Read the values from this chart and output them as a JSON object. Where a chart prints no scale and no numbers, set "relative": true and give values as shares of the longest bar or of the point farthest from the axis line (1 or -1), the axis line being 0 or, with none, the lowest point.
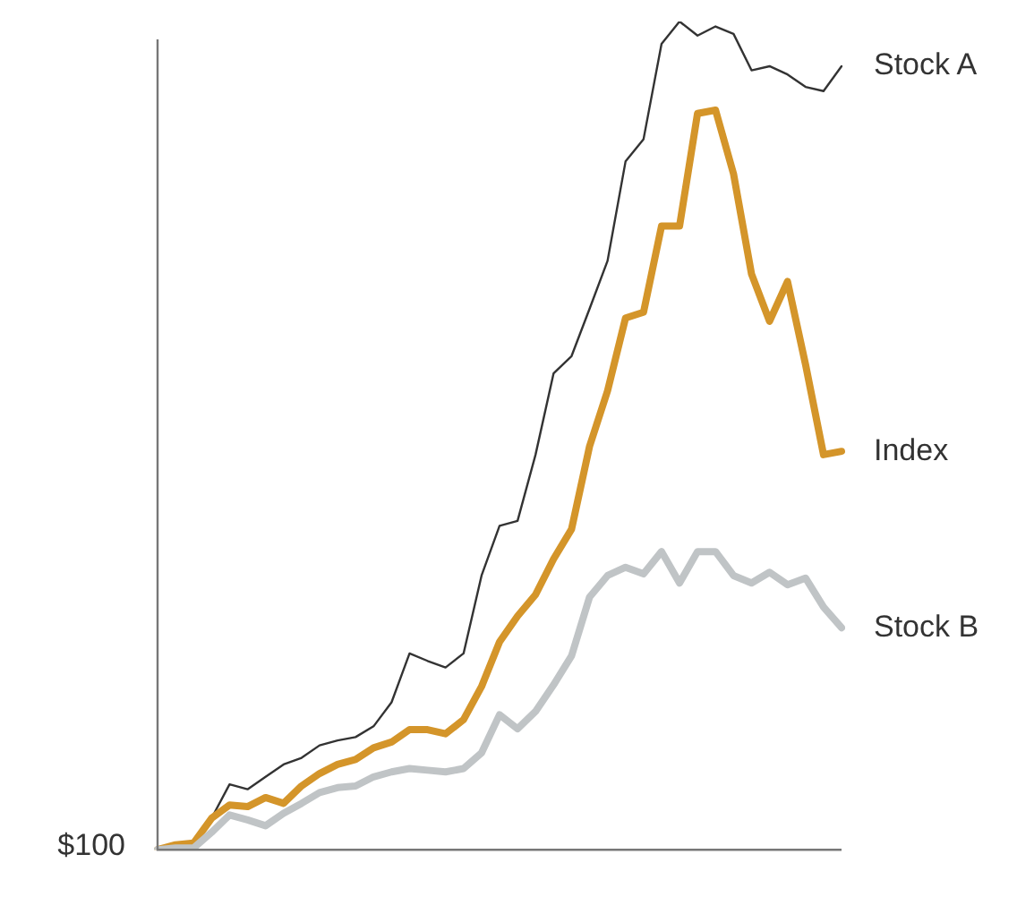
{
  "chart_data": {
    "type": "line",
    "relative": true,
    "legend": false,
    "grid": false,
    "marker": "none",
    "line_style": "solid",
    "categories": [
      null,
      null,
      null,
      null,
      null,
      null,
      null,
      null,
      null,
      null,
      null,
      null,
      null,
      null,
      null,
      null,
      null,
      null,
      null,
      null,
      null,
      null,
      null,
      null,
      null,
      null,
      null,
      null,
      null,
      null,
      null,
      null,
      null,
      null,
      null,
      null,
      null,
      null,
      null
    ],
    "annotations": [
      "$100"
    ],
    "series": [
      {
        "name": "Stock A",
        "color": "#333333",
        "values": [
          0,
          0.006,
          0.008,
          0.038,
          0.079,
          0.073,
          0.088,
          0.103,
          0.111,
          0.126,
          0.132,
          0.136,
          0.149,
          0.178,
          0.237,
          0.228,
          0.22,
          0.237,
          0.331,
          0.391,
          0.397,
          0.477,
          0.575,
          0.596,
          0.653,
          0.711,
          0.831,
          0.858,
          0.973,
          1,
          0.983,
          0.994,
          0.985,
          0.941,
          0.946,
          0.936,
          0.921,
          0.916,
          0.946
        ]
      },
      {
        "name": "Index",
        "color": "#d4952a",
        "values": [
          0,
          0.006,
          0.008,
          0.038,
          0.054,
          0.052,
          0.063,
          0.056,
          0.077,
          0.092,
          0.103,
          0.109,
          0.123,
          0.13,
          0.145,
          0.145,
          0.14,
          0.157,
          0.197,
          0.251,
          0.282,
          0.308,
          0.351,
          0.387,
          0.487,
          0.554,
          0.642,
          0.649,
          0.753,
          0.753,
          0.889,
          0.893,
          0.816,
          0.695,
          0.638,
          0.686,
          0.586,
          0.477,
          0.481
        ]
      },
      {
        "name": "Stock B",
        "color": "#c0c4c6",
        "values": [
          0,
          0.002,
          0.002,
          0.021,
          0.042,
          0.036,
          0.029,
          0.044,
          0.056,
          0.069,
          0.075,
          0.077,
          0.088,
          0.094,
          0.098,
          0.096,
          0.094,
          0.098,
          0.117,
          0.163,
          0.146,
          0.167,
          0.199,
          0.234,
          0.305,
          0.331,
          0.341,
          0.333,
          0.36,
          0.322,
          0.36,
          0.36,
          0.331,
          0.322,
          0.335,
          0.32,
          0.328,
          0.293,
          0.268
        ]
      }
    ]
  }
}
